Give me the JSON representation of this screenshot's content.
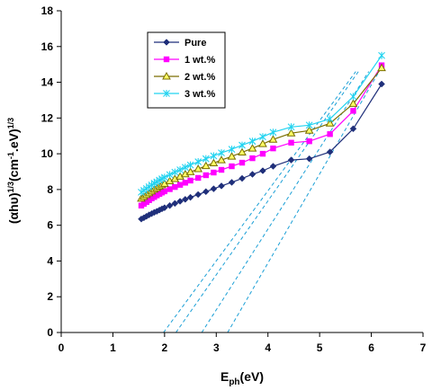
{
  "chart_data": {
    "type": "line",
    "title": "",
    "xlabel": {
      "main": "E",
      "sub": "ph",
      "rest": "(eV)"
    },
    "ylabel": {
      "p1": "(αhυ)",
      "sup1": "1/3",
      "p2": "(cm",
      "sup2": "-1",
      "p3": ".eV)",
      "sup3": "1/3"
    },
    "xlim": [
      0,
      7
    ],
    "ylim": [
      0,
      18
    ],
    "xticks": [
      0,
      1,
      2,
      3,
      4,
      5,
      6,
      7
    ],
    "yticks": [
      0,
      2,
      4,
      6,
      8,
      10,
      12,
      14,
      16,
      18
    ],
    "grid": false,
    "legend": {
      "placement": "top-left-inside"
    },
    "series": [
      {
        "name": "Pure",
        "color": "#1f2f7a",
        "marker": "diamond",
        "points": [
          [
            1.55,
            6.35
          ],
          [
            1.6,
            6.42
          ],
          [
            1.65,
            6.5
          ],
          [
            1.7,
            6.58
          ],
          [
            1.75,
            6.65
          ],
          [
            1.8,
            6.72
          ],
          [
            1.85,
            6.78
          ],
          [
            1.9,
            6.85
          ],
          [
            1.95,
            6.92
          ],
          [
            2.0,
            6.98
          ],
          [
            2.1,
            7.1
          ],
          [
            2.2,
            7.22
          ],
          [
            2.3,
            7.34
          ],
          [
            2.4,
            7.45
          ],
          [
            2.5,
            7.56
          ],
          [
            2.65,
            7.72
          ],
          [
            2.8,
            7.88
          ],
          [
            2.95,
            8.04
          ],
          [
            3.1,
            8.2
          ],
          [
            3.3,
            8.4
          ],
          [
            3.5,
            8.62
          ],
          [
            3.7,
            8.85
          ],
          [
            3.9,
            9.05
          ],
          [
            4.1,
            9.3
          ],
          [
            4.45,
            9.65
          ],
          [
            4.8,
            9.72
          ],
          [
            5.2,
            10.1
          ],
          [
            5.65,
            11.4
          ],
          [
            6.2,
            13.9
          ]
        ]
      },
      {
        "name": "1 wt.%",
        "color": "#ff00ff",
        "marker": "square",
        "points": [
          [
            1.55,
            7.1
          ],
          [
            1.6,
            7.2
          ],
          [
            1.65,
            7.3
          ],
          [
            1.7,
            7.4
          ],
          [
            1.75,
            7.5
          ],
          [
            1.8,
            7.58
          ],
          [
            1.85,
            7.67
          ],
          [
            1.9,
            7.75
          ],
          [
            1.95,
            7.83
          ],
          [
            2.0,
            7.9
          ],
          [
            2.1,
            8.02
          ],
          [
            2.2,
            8.14
          ],
          [
            2.3,
            8.26
          ],
          [
            2.4,
            8.38
          ],
          [
            2.5,
            8.5
          ],
          [
            2.65,
            8.65
          ],
          [
            2.8,
            8.8
          ],
          [
            2.95,
            8.95
          ],
          [
            3.1,
            9.1
          ],
          [
            3.3,
            9.3
          ],
          [
            3.5,
            9.5
          ],
          [
            3.7,
            9.75
          ],
          [
            3.9,
            10.0
          ],
          [
            4.1,
            10.3
          ],
          [
            4.45,
            10.62
          ],
          [
            4.8,
            10.7
          ],
          [
            5.2,
            11.1
          ],
          [
            5.65,
            12.4
          ],
          [
            6.2,
            14.95
          ]
        ]
      },
      {
        "name": "2 wt.%",
        "color": "#7a6e00",
        "marker": "triangle",
        "points": [
          [
            1.55,
            7.5
          ],
          [
            1.6,
            7.6
          ],
          [
            1.65,
            7.7
          ],
          [
            1.7,
            7.8
          ],
          [
            1.75,
            7.9
          ],
          [
            1.8,
            8.0
          ],
          [
            1.85,
            8.08
          ],
          [
            1.9,
            8.17
          ],
          [
            1.95,
            8.25
          ],
          [
            2.0,
            8.33
          ],
          [
            2.1,
            8.47
          ],
          [
            2.2,
            8.6
          ],
          [
            2.3,
            8.73
          ],
          [
            2.4,
            8.86
          ],
          [
            2.5,
            8.98
          ],
          [
            2.65,
            9.15
          ],
          [
            2.8,
            9.32
          ],
          [
            2.95,
            9.48
          ],
          [
            3.1,
            9.65
          ],
          [
            3.3,
            9.85
          ],
          [
            3.5,
            10.08
          ],
          [
            3.7,
            10.3
          ],
          [
            3.9,
            10.55
          ],
          [
            4.1,
            10.8
          ],
          [
            4.45,
            11.15
          ],
          [
            4.8,
            11.3
          ],
          [
            5.2,
            11.7
          ],
          [
            5.65,
            12.8
          ],
          [
            6.2,
            14.8
          ]
        ]
      },
      {
        "name": "3 wt.%",
        "color": "#22d3f0",
        "marker": "x",
        "points": [
          [
            1.55,
            7.85
          ],
          [
            1.6,
            7.95
          ],
          [
            1.65,
            8.05
          ],
          [
            1.7,
            8.15
          ],
          [
            1.75,
            8.25
          ],
          [
            1.8,
            8.35
          ],
          [
            1.85,
            8.43
          ],
          [
            1.9,
            8.52
          ],
          [
            1.95,
            8.6
          ],
          [
            2.0,
            8.68
          ],
          [
            2.1,
            8.83
          ],
          [
            2.2,
            8.97
          ],
          [
            2.3,
            9.1
          ],
          [
            2.4,
            9.24
          ],
          [
            2.5,
            9.37
          ],
          [
            2.65,
            9.55
          ],
          [
            2.8,
            9.72
          ],
          [
            2.95,
            9.88
          ],
          [
            3.1,
            10.05
          ],
          [
            3.3,
            10.25
          ],
          [
            3.5,
            10.48
          ],
          [
            3.7,
            10.7
          ],
          [
            3.9,
            10.95
          ],
          [
            4.1,
            11.2
          ],
          [
            4.45,
            11.5
          ],
          [
            4.8,
            11.6
          ],
          [
            5.2,
            11.95
          ],
          [
            5.65,
            13.2
          ],
          [
            6.2,
            15.5
          ]
        ]
      }
    ],
    "fit_lines": {
      "color": "#1a9fd6",
      "style": "dashed",
      "lines": [
        [
          [
            1.98,
            0
          ],
          [
            5.7,
            14.6
          ]
        ],
        [
          [
            2.22,
            0
          ],
          [
            5.75,
            14.6
          ]
        ],
        [
          [
            2.72,
            0
          ],
          [
            5.95,
            14.6
          ]
        ],
        [
          [
            3.22,
            0
          ],
          [
            6.15,
            14.6
          ]
        ]
      ]
    }
  }
}
